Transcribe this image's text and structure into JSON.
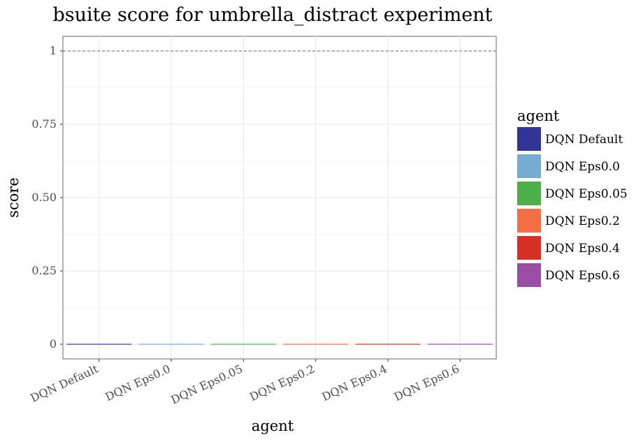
{
  "chart_data": {
    "type": "bar",
    "title": "bsuite score for umbrella_distract experiment",
    "xlabel": "agent",
    "ylabel": "score",
    "categories": [
      "DQN Default",
      "DQN Eps0.0",
      "DQN Eps0.05",
      "DQN Eps0.2",
      "DQN Eps0.4",
      "DQN Eps0.6"
    ],
    "values": [
      0,
      0,
      0,
      0,
      0,
      0
    ],
    "colors": [
      "#313695",
      "#74add1",
      "#4daf4a",
      "#f46d43",
      "#d73027",
      "#984ea3"
    ],
    "ylim": [
      -0.05,
      1.05
    ],
    "yticks": [
      0,
      0.25,
      0.5,
      0.75,
      1
    ],
    "ytick_labels": [
      "0",
      "0.25",
      "0.50",
      "0.75",
      "1"
    ],
    "reference_line": 1,
    "grid": true,
    "legend": {
      "title": "agent",
      "position": "right",
      "entries": [
        "DQN Default",
        "DQN Eps0.0",
        "DQN Eps0.05",
        "DQN Eps0.2",
        "DQN Eps0.4",
        "DQN Eps0.6"
      ]
    }
  }
}
